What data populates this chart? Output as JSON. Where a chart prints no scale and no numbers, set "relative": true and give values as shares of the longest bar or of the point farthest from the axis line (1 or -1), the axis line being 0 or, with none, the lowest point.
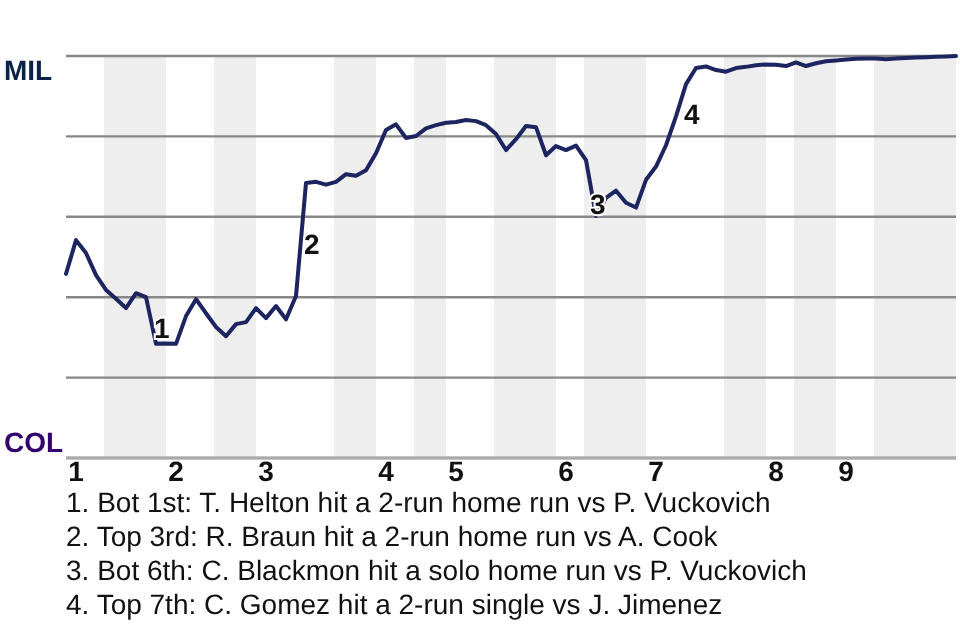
{
  "chart_data": {
    "type": "line",
    "relative": true,
    "categories": [
      null,
      "1",
      null,
      null,
      null,
      null,
      null,
      null,
      null,
      null,
      null,
      "2",
      null,
      null,
      null,
      null,
      null,
      null,
      null,
      null,
      "3",
      null,
      null,
      null,
      null,
      null,
      null,
      null,
      null,
      null,
      null,
      null,
      "4",
      null,
      null,
      null,
      null,
      null,
      null,
      "5",
      null,
      null,
      null,
      null,
      null,
      null,
      null,
      null,
      null,
      null,
      "6",
      null,
      null,
      null,
      null,
      null,
      null,
      null,
      null,
      "7",
      null,
      null,
      null,
      null,
      null,
      null,
      null,
      null,
      null,
      null,
      null,
      "8",
      null,
      null,
      null,
      null,
      null,
      null,
      "9",
      null,
      null,
      null,
      null,
      null,
      null,
      null,
      null,
      null,
      null,
      null
    ],
    "series": [
      {
        "color": "#1c2560",
        "values": [
          0.458,
          0.542,
          0.51,
          0.455,
          0.418,
          0.396,
          0.373,
          0.41,
          0.4,
          0.284,
          0.285,
          0.284,
          0.353,
          0.395,
          0.36,
          0.326,
          0.303,
          0.333,
          0.338,
          0.373,
          0.348,
          0.378,
          0.345,
          0.403,
          0.684,
          0.687,
          0.68,
          0.687,
          0.706,
          0.702,
          0.716,
          0.758,
          0.816,
          0.83,
          0.796,
          0.801,
          0.82,
          0.828,
          0.834,
          0.836,
          0.841,
          0.838,
          0.828,
          0.806,
          0.766,
          0.793,
          0.826,
          0.823,
          0.753,
          0.776,
          0.766,
          0.777,
          0.741,
          0.602,
          0.647,
          0.665,
          0.635,
          0.623,
          0.692,
          0.725,
          0.778,
          0.85,
          0.93,
          0.97,
          0.974,
          0.965,
          0.961,
          0.97,
          0.973,
          0.977,
          0.979,
          0.978,
          0.975,
          0.984,
          0.975,
          0.982,
          0.987,
          0.989,
          0.991,
          0.993,
          0.994,
          0.994,
          0.992,
          0.994,
          0.995,
          0.996,
          0.997,
          0.998,
          0.999,
          1
        ]
      }
    ],
    "grid": "y",
    "marker": "none",
    "line_style": "solid",
    "annotations": [
      "MIL",
      "COL",
      "1",
      "2",
      "3",
      "4",
      "1. Bot 1st: T. Helton hit a 2-run home run vs P. Vuckovich",
      "2. Top 3rd: R. Braun hit a 2-run home run vs A. Cook",
      "3. Bot 6th: C. Blackmon hit a solo home run vs P. Vuckovich",
      "4. Top 7th: C. Gomez hit a 2-run single vs J. Jimenez"
    ]
  }
}
